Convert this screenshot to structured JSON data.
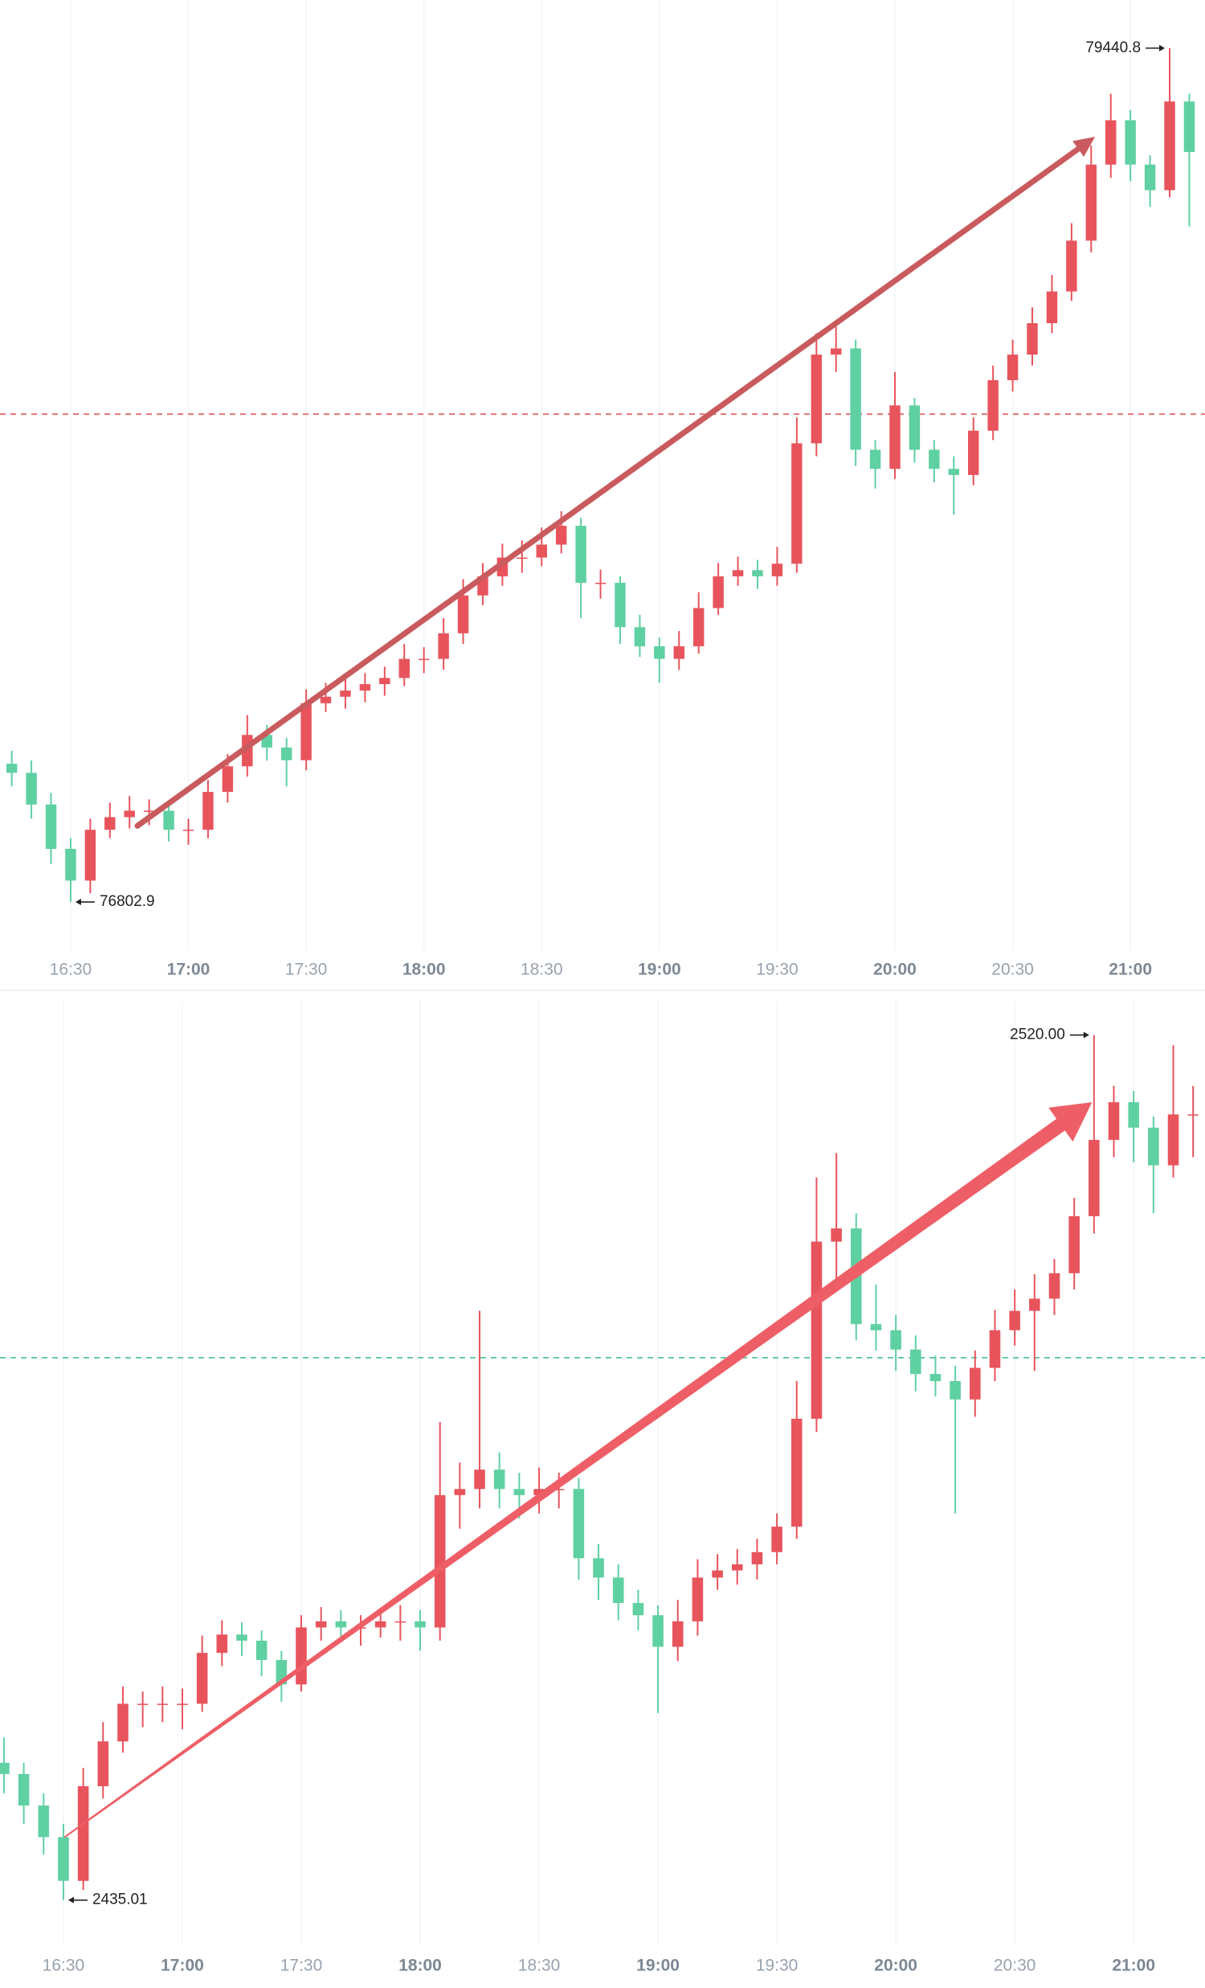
{
  "chart_data": [
    {
      "type": "candlestick",
      "x": [
        975,
        980,
        985,
        990,
        995,
        1000,
        1005,
        1010,
        1015,
        1020,
        1025,
        1030,
        1035,
        1040,
        1045,
        1050,
        1055,
        1060,
        1065,
        1070,
        1075,
        1080,
        1085,
        1090,
        1095,
        1100,
        1105,
        1110,
        1115,
        1120,
        1125,
        1130,
        1135,
        1140,
        1145,
        1150,
        1155,
        1160,
        1165,
        1170,
        1175,
        1180,
        1185,
        1190,
        1195,
        1200,
        1205,
        1210,
        1215,
        1220,
        1225,
        1230,
        1235,
        1240,
        1245,
        1250,
        1255,
        1260,
        1265,
        1270,
        1275
      ],
      "ohlc": [
        [
          77230,
          77270,
          77160,
          77202
        ],
        [
          77202,
          77240,
          77060,
          77104
        ],
        [
          77104,
          77140,
          76920,
          76967
        ],
        [
          76967,
          77000,
          76802.9,
          76869
        ],
        [
          76869,
          77060,
          76830,
          77026
        ],
        [
          77026,
          77110,
          77000,
          77065
        ],
        [
          77065,
          77130,
          77030,
          77085
        ],
        [
          77085,
          77120,
          77040,
          77085
        ],
        [
          77085,
          77110,
          76990,
          77026
        ],
        [
          77026,
          77060,
          76980,
          77026
        ],
        [
          77026,
          77180,
          77000,
          77143
        ],
        [
          77143,
          77260,
          77110,
          77222
        ],
        [
          77222,
          77380,
          77190,
          77319
        ],
        [
          77319,
          77350,
          77240,
          77280
        ],
        [
          77280,
          77310,
          77160,
          77241
        ],
        [
          77241,
          77460,
          77210,
          77417
        ],
        [
          77417,
          77480,
          77390,
          77437
        ],
        [
          77437,
          77500,
          77400,
          77456
        ],
        [
          77456,
          77510,
          77420,
          77476
        ],
        [
          77476,
          77530,
          77440,
          77495
        ],
        [
          77495,
          77600,
          77470,
          77554
        ],
        [
          77554,
          77590,
          77510,
          77554
        ],
        [
          77554,
          77680,
          77520,
          77633
        ],
        [
          77633,
          77800,
          77600,
          77750
        ],
        [
          77750,
          77850,
          77720,
          77809
        ],
        [
          77809,
          77910,
          77780,
          77867
        ],
        [
          77867,
          77920,
          77820,
          77867
        ],
        [
          77867,
          77960,
          77840,
          77907
        ],
        [
          77907,
          78010,
          77880,
          77965
        ],
        [
          77965,
          77990,
          77680,
          77789
        ],
        [
          77789,
          77830,
          77740,
          77789
        ],
        [
          77789,
          77810,
          77600,
          77652
        ],
        [
          77652,
          77690,
          77560,
          77593
        ],
        [
          77593,
          77620,
          77480,
          77554
        ],
        [
          77554,
          77640,
          77520,
          77593
        ],
        [
          77593,
          77760,
          77570,
          77711
        ],
        [
          77711,
          77850,
          77690,
          77809
        ],
        [
          77809,
          77870,
          77780,
          77828
        ],
        [
          77828,
          77860,
          77770,
          77809
        ],
        [
          77809,
          77900,
          77780,
          77848
        ],
        [
          77848,
          78300,
          77820,
          78220
        ],
        [
          78220,
          78560,
          78180,
          78494
        ],
        [
          78494,
          78580,
          78440,
          78513
        ],
        [
          78513,
          78540,
          78150,
          78200
        ],
        [
          78200,
          78230,
          78080,
          78141
        ],
        [
          78141,
          78440,
          78110,
          78337
        ],
        [
          78337,
          78360,
          78160,
          78200
        ],
        [
          78200,
          78230,
          78100,
          78141
        ],
        [
          78141,
          78180,
          78000,
          78122
        ],
        [
          78122,
          78300,
          78090,
          78259
        ],
        [
          78259,
          78460,
          78230,
          78415
        ],
        [
          78415,
          78540,
          78380,
          78494
        ],
        [
          78494,
          78640,
          78460,
          78591
        ],
        [
          78591,
          78740,
          78560,
          78689
        ],
        [
          78689,
          78900,
          78660,
          78846
        ],
        [
          78846,
          79140,
          78810,
          79081
        ],
        [
          79081,
          79300,
          79040,
          79218
        ],
        [
          79218,
          79250,
          79030,
          79081
        ],
        [
          79081,
          79110,
          78950,
          79002
        ],
        [
          79002,
          79440.8,
          78980,
          79276
        ],
        [
          79276,
          79300,
          78890,
          79120
        ]
      ],
      "up_color": "#e8545c",
      "down_color": "#5fd0a2",
      "xlim": [
        972,
        1279
      ],
      "ylim": [
        76654,
        79589.5
      ],
      "xticks": [
        {
          "value": 990,
          "label": "16:30"
        },
        {
          "value": 1020,
          "label": "17:00"
        },
        {
          "value": 1050,
          "label": "17:30"
        },
        {
          "value": 1080,
          "label": "18:00"
        },
        {
          "value": 1110,
          "label": "18:30"
        },
        {
          "value": 1140,
          "label": "19:00"
        },
        {
          "value": 1170,
          "label": "19:30"
        },
        {
          "value": 1200,
          "label": "20:00"
        },
        {
          "value": 1230,
          "label": "20:30"
        },
        {
          "value": 1260,
          "label": "21:00"
        }
      ],
      "grid": true,
      "ref_line": {
        "value": 78310,
        "color": "#e06a6f"
      },
      "max_label": {
        "x": 1270,
        "value": 79440.8
      },
      "min_label": {
        "x": 990,
        "value": 76802.9
      },
      "trend_arrow": {
        "x": [
          1007,
          1251
        ],
        "y": [
          77038,
          79167
        ],
        "color": "#c95a5d",
        "style": "line"
      }
    },
    {
      "type": "candlestick",
      "x": [
        975,
        980,
        985,
        990,
        995,
        1000,
        1005,
        1010,
        1015,
        1020,
        1025,
        1030,
        1035,
        1040,
        1045,
        1050,
        1055,
        1060,
        1065,
        1070,
        1075,
        1080,
        1085,
        1090,
        1095,
        1100,
        1105,
        1110,
        1115,
        1120,
        1125,
        1130,
        1135,
        1140,
        1145,
        1150,
        1155,
        1160,
        1165,
        1170,
        1175,
        1180,
        1185,
        1190,
        1195,
        1200,
        1205,
        1210,
        1215,
        1220,
        1225,
        1230,
        1235,
        1240,
        1245,
        1250,
        1255,
        1260,
        1265,
        1270,
        1275
      ],
      "ohlc": [
        [
          2448.5,
          2451.0,
          2445.5,
          2447.4
        ],
        [
          2447.4,
          2448.5,
          2442.5,
          2444.3
        ],
        [
          2444.3,
          2445.5,
          2439.5,
          2441.2
        ],
        [
          2441.2,
          2442.5,
          2435.01,
          2436.9
        ],
        [
          2436.9,
          2448.0,
          2436.0,
          2446.2
        ],
        [
          2446.2,
          2452.5,
          2445.0,
          2450.6
        ],
        [
          2450.6,
          2456.0,
          2449.5,
          2454.3
        ],
        [
          2454.3,
          2455.5,
          2452.0,
          2454.3
        ],
        [
          2454.3,
          2456.0,
          2452.5,
          2454.3
        ],
        [
          2454.3,
          2455.8,
          2451.8,
          2454.3
        ],
        [
          2454.3,
          2461.0,
          2453.5,
          2459.3
        ],
        [
          2459.3,
          2462.5,
          2458.0,
          2461.1
        ],
        [
          2461.1,
          2462.3,
          2459.0,
          2460.5
        ],
        [
          2460.5,
          2461.5,
          2457.0,
          2458.6
        ],
        [
          2458.6,
          2459.5,
          2454.5,
          2456.2
        ],
        [
          2456.2,
          2463.0,
          2455.5,
          2461.8
        ],
        [
          2461.8,
          2463.8,
          2460.5,
          2462.4
        ],
        [
          2462.4,
          2463.5,
          2460.5,
          2461.8
        ],
        [
          2461.8,
          2463.0,
          2460.0,
          2461.8
        ],
        [
          2461.8,
          2463.5,
          2460.8,
          2462.4
        ],
        [
          2462.4,
          2464.0,
          2460.5,
          2462.4
        ],
        [
          2462.4,
          2463.5,
          2459.5,
          2461.8
        ],
        [
          2461.8,
          2482.0,
          2460.5,
          2474.8
        ],
        [
          2474.8,
          2478.0,
          2471.5,
          2475.4
        ],
        [
          2475.4,
          2492.9,
          2473.5,
          2477.3
        ],
        [
          2477.3,
          2479.0,
          2473.5,
          2475.4
        ],
        [
          2475.4,
          2477.0,
          2472.5,
          2474.8
        ],
        [
          2474.8,
          2477.5,
          2473.0,
          2475.4
        ],
        [
          2475.4,
          2477.0,
          2473.5,
          2475.4
        ],
        [
          2475.4,
          2476.5,
          2466.5,
          2468.6
        ],
        [
          2468.6,
          2470.0,
          2464.5,
          2466.7
        ],
        [
          2466.7,
          2468.0,
          2462.5,
          2464.2
        ],
        [
          2464.2,
          2465.5,
          2461.5,
          2463.0
        ],
        [
          2463.0,
          2464.0,
          2453.4,
          2459.9
        ],
        [
          2459.9,
          2464.5,
          2458.5,
          2462.4
        ],
        [
          2462.4,
          2468.5,
          2461.0,
          2466.7
        ],
        [
          2466.7,
          2469.0,
          2465.5,
          2467.4
        ],
        [
          2467.4,
          2469.5,
          2466.0,
          2468.0
        ],
        [
          2468.0,
          2470.5,
          2466.5,
          2469.2
        ],
        [
          2469.2,
          2473.0,
          2468.0,
          2471.7
        ],
        [
          2471.7,
          2486.0,
          2470.5,
          2482.3
        ],
        [
          2482.3,
          2506.0,
          2481.0,
          2499.7
        ],
        [
          2499.7,
          2508.4,
          2496.0,
          2501.0
        ],
        [
          2501.0,
          2502.5,
          2490.0,
          2491.6
        ],
        [
          2491.6,
          2495.5,
          2489.0,
          2491.0
        ],
        [
          2491.0,
          2492.5,
          2487.0,
          2489.1
        ],
        [
          2489.1,
          2490.5,
          2485.0,
          2486.7
        ],
        [
          2486.7,
          2488.5,
          2484.5,
          2486.0
        ],
        [
          2486.0,
          2487.5,
          2473.0,
          2484.2
        ],
        [
          2484.2,
          2489.0,
          2482.5,
          2487.3
        ],
        [
          2487.3,
          2493.0,
          2486.0,
          2491.0
        ],
        [
          2491.0,
          2495.0,
          2489.5,
          2492.9
        ],
        [
          2492.9,
          2496.5,
          2487.0,
          2494.1
        ],
        [
          2494.1,
          2498.0,
          2492.5,
          2496.6
        ],
        [
          2496.6,
          2504.0,
          2495.0,
          2502.2
        ],
        [
          2502.2,
          2520.0,
          2500.5,
          2509.7
        ],
        [
          2509.7,
          2515.0,
          2508.0,
          2513.4
        ],
        [
          2513.4,
          2514.5,
          2507.5,
          2510.9
        ],
        [
          2510.9,
          2512.0,
          2502.5,
          2507.2
        ],
        [
          2507.2,
          2519.0,
          2506.0,
          2512.2
        ],
        [
          2512.2,
          2515.0,
          2508.0,
          2512.2
        ]
      ],
      "up_color": "#e8545c",
      "down_color": "#5fd0a2",
      "xlim": [
        974,
        1278
      ],
      "ylim": [
        2430.64,
        2523.36
      ],
      "xticks": [
        {
          "value": 990,
          "label": "16:30"
        },
        {
          "value": 1020,
          "label": "17:00"
        },
        {
          "value": 1050,
          "label": "17:30"
        },
        {
          "value": 1080,
          "label": "18:00"
        },
        {
          "value": 1110,
          "label": "18:30"
        },
        {
          "value": 1140,
          "label": "19:00"
        },
        {
          "value": 1170,
          "label": "19:30"
        },
        {
          "value": 1200,
          "label": "20:00"
        },
        {
          "value": 1230,
          "label": "20:30"
        },
        {
          "value": 1260,
          "label": "21:00"
        }
      ],
      "grid": true,
      "ref_line": {
        "value": 2488.3,
        "color": "#5fc7a0"
      },
      "max_label": {
        "x": 1250,
        "value": 2520,
        "label": "2520.00"
      },
      "min_label": {
        "x": 990,
        "value": 2435.01
      },
      "trend_arrow": {
        "x": [
          990.3,
          1249.5
        ],
        "y": [
          2441.2,
          2513.4
        ],
        "color": "#ee5e66",
        "style": "wedge"
      }
    }
  ]
}
